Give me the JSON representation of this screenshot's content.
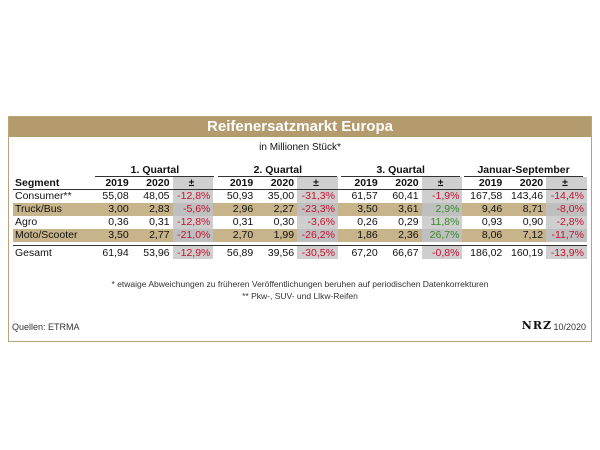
{
  "title": "Reifenersatzmarkt Europa",
  "subtitle": "in Millionen Stück*",
  "groups": [
    "1. Quartal",
    "2. Quartal",
    "3. Quartal",
    "Januar-September"
  ],
  "headers": {
    "segment": "Segment",
    "y2019": "2019",
    "y2020": "2020",
    "change": "±"
  },
  "rows": [
    {
      "segment": "Consumer**",
      "tan": false,
      "q1": [
        "55,08",
        "48,05",
        "-12,8%"
      ],
      "q2": [
        "50,93",
        "35,00",
        "-31,3%"
      ],
      "q3": [
        "61,57",
        "60,41",
        "-1,9%"
      ],
      "ytd": [
        "167,58",
        "143,46",
        "-14,4%"
      ]
    },
    {
      "segment": "Truck/Bus",
      "tan": true,
      "q1": [
        "3,00",
        "2,83",
        "-5,6%"
      ],
      "q2": [
        "2,96",
        "2,27",
        "-23,3%"
      ],
      "q3": [
        "3,50",
        "3,61",
        "2,9%"
      ],
      "ytd": [
        "9,46",
        "8,71",
        "-8,0%"
      ]
    },
    {
      "segment": "Agro",
      "tan": false,
      "q1": [
        "0,36",
        "0,31",
        "-12,8%"
      ],
      "q2": [
        "0,31",
        "0,30",
        "-3,6%"
      ],
      "q3": [
        "0,26",
        "0,29",
        "11,8%"
      ],
      "ytd": [
        "0,93",
        "0,90",
        "-2,8%"
      ]
    },
    {
      "segment": "Moto/Scooter",
      "tan": true,
      "q1": [
        "3,50",
        "2,77",
        "-21,0%"
      ],
      "q2": [
        "2,70",
        "1,99",
        "-26,2%"
      ],
      "q3": [
        "1,86",
        "2,36",
        "26,7%"
      ],
      "ytd": [
        "8,06",
        "7,12",
        "-11,7%"
      ]
    }
  ],
  "total": {
    "segment": "Gesamt",
    "q1": [
      "61,94",
      "53,96",
      "-12,9%"
    ],
    "q2": [
      "56,89",
      "39,56",
      "-30,5%"
    ],
    "q3": [
      "67,20",
      "66,67",
      "-0,8%"
    ],
    "ytd": [
      "186,02",
      "160,19",
      "-13,9%"
    ]
  },
  "notes": [
    "* etwaige Abweichungen zu früheren Veröffentlichungen beruhen auf periodischen Datenkorrekturen",
    "** Pkw-, SUV- und Llkw-Reifen"
  ],
  "source": "Quellen: ETRMA",
  "logo": "NRZ",
  "date": "10/2020",
  "colors": {
    "band": "#b39b6e",
    "tan_row": "#c8b48a",
    "negative": "#c8102e",
    "positive": "#3a8a2a"
  }
}
